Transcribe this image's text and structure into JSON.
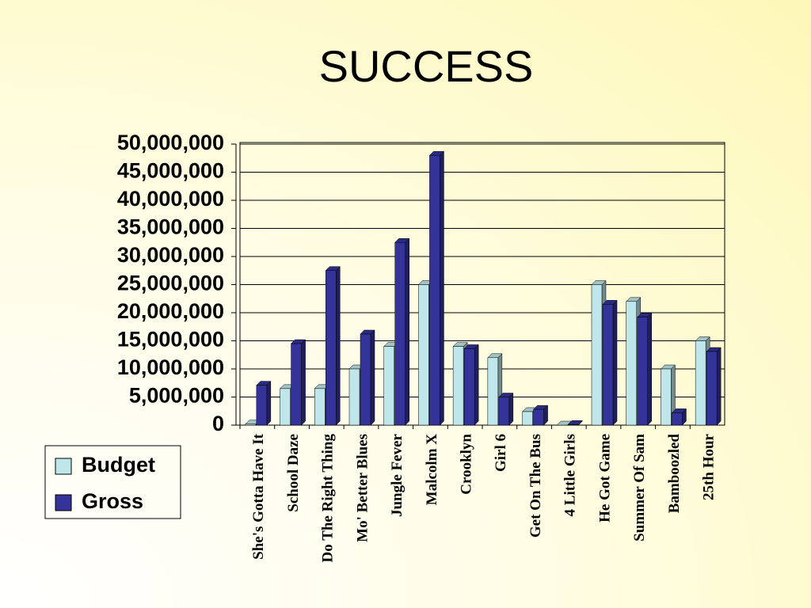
{
  "chart_data": {
    "type": "bar",
    "title": "SUCCESS",
    "categories": [
      "She's Gotta Have It",
      "School Daze",
      "Do The Right Thing",
      "Mo' Better Blues",
      "Jungle Fever",
      "Malcolm X",
      "Crooklyn",
      "Girl 6",
      "Get On The Bus",
      "4 Little Girls",
      "He Got Game",
      "Summer Of Sam",
      "Bamboozled",
      "25th Hour"
    ],
    "series": [
      {
        "name": "Budget",
        "color": "#bfe6ea",
        "values": [
          175000,
          6500000,
          6500000,
          10000000,
          14000000,
          25000000,
          14000000,
          12000000,
          2400000,
          0,
          25000000,
          22000000,
          10000000,
          15000000
        ]
      },
      {
        "name": "Gross",
        "color": "#333399",
        "values": [
          7100000,
          14500000,
          27500000,
          16200000,
          32500000,
          48000000,
          13600000,
          5000000,
          2800000,
          100000,
          21500000,
          19200000,
          2200000,
          13100000
        ]
      }
    ],
    "ylim": [
      0,
      50000000
    ],
    "yticks": [
      {
        "value": 0,
        "label": "0"
      },
      {
        "value": 5000000,
        "label": "5,000,000"
      },
      {
        "value": 10000000,
        "label": "10,000,000"
      },
      {
        "value": 15000000,
        "label": "15,000,000"
      },
      {
        "value": 20000000,
        "label": "20,000,000"
      },
      {
        "value": 25000000,
        "label": "25,000,000"
      },
      {
        "value": 30000000,
        "label": "30,000,000"
      },
      {
        "value": 35000000,
        "label": "35,000,000"
      },
      {
        "value": 40000000,
        "label": "40,000,000"
      },
      {
        "value": 45000000,
        "label": "45,000,000"
      },
      {
        "value": 50000000,
        "label": "50,000,000"
      }
    ],
    "grid": true,
    "legend": "left"
  }
}
